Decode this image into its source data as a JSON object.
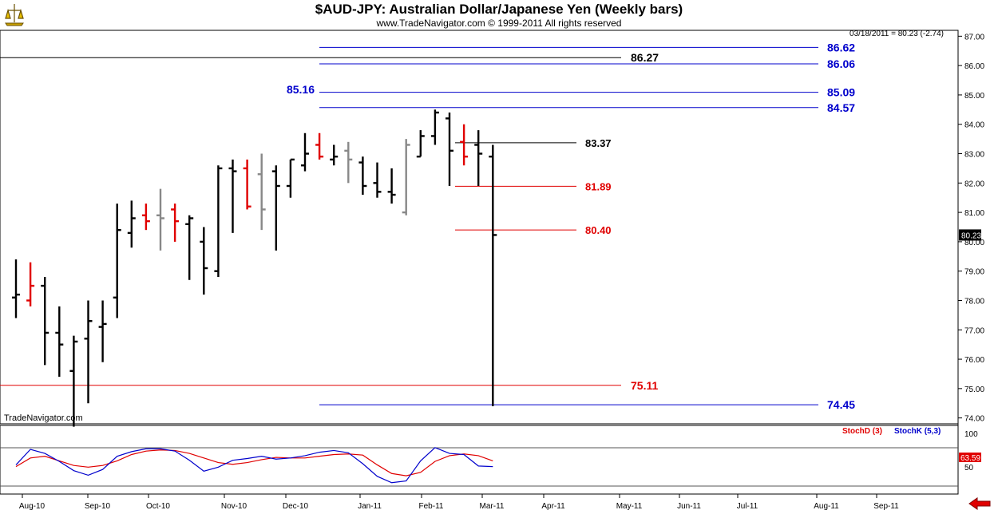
{
  "header": {
    "title": "$AUD-JPY:  Australian Dollar/Japanese Yen  (Weekly bars)",
    "subtitle": "www.TradeNavigator.com © 1999-2011 All rights reserved"
  },
  "colors": {
    "up_bar": "#000000",
    "down_bar": "#e00000",
    "inside_bar": "#888888",
    "blue_level": "#0000cc",
    "black_level": "#000000",
    "red_level": "#e00000",
    "stochD": "#e00000",
    "stochK": "#0000cc"
  },
  "chart_data": [
    {
      "type": "ohlc",
      "title": "$AUD-JPY:  Australian Dollar/Japanese Yen  (Weekly bars)",
      "last_quote": "03/18/2011 = 80.23 (-2.74)",
      "last_price_label": "80.23",
      "watermark": "TradeNavigator.com",
      "y_axis": {
        "min": 73.8,
        "max": 87.2,
        "ticks": [
          "74.00",
          "75.00",
          "76.00",
          "77.00",
          "78.00",
          "79.00",
          "80.00",
          "81.00",
          "82.00",
          "83.00",
          "84.00",
          "85.00",
          "86.00",
          "87.00"
        ],
        "position": "right"
      },
      "x_axis": {
        "labels": [
          "Aug-10",
          "Sep-10",
          "Oct-10",
          "Nov-10",
          "Dec-10",
          "Jan-11",
          "Feb-11",
          "Mar-11",
          "Apr-11",
          "May-11",
          "Jun-11",
          "Jul-11",
          "Aug-11",
          "Sep-11"
        ]
      },
      "bars": [
        {
          "o": 78.1,
          "h": 79.4,
          "l": 77.4,
          "c": 78.2,
          "color": "black"
        },
        {
          "o": 78.0,
          "h": 79.3,
          "l": 77.8,
          "c": 78.5,
          "color": "red"
        },
        {
          "o": 78.5,
          "h": 78.8,
          "l": 75.8,
          "c": 76.9,
          "color": "black"
        },
        {
          "o": 76.9,
          "h": 77.8,
          "l": 75.4,
          "c": 76.5,
          "color": "black"
        },
        {
          "o": 75.6,
          "h": 76.8,
          "l": 73.7,
          "c": 76.6,
          "color": "black"
        },
        {
          "o": 76.7,
          "h": 78.0,
          "l": 74.5,
          "c": 77.3,
          "color": "black"
        },
        {
          "o": 77.1,
          "h": 78.0,
          "l": 75.9,
          "c": 77.2,
          "color": "black"
        },
        {
          "o": 78.1,
          "h": 81.3,
          "l": 77.4,
          "c": 80.4,
          "color": "black"
        },
        {
          "o": 80.3,
          "h": 81.4,
          "l": 79.8,
          "c": 80.8,
          "color": "black"
        },
        {
          "o": 80.9,
          "h": 81.3,
          "l": 80.4,
          "c": 80.7,
          "color": "red"
        },
        {
          "o": 80.9,
          "h": 81.8,
          "l": 79.7,
          "c": 80.8,
          "color": "gray"
        },
        {
          "o": 81.1,
          "h": 81.3,
          "l": 80.0,
          "c": 80.7,
          "color": "red"
        },
        {
          "o": 80.6,
          "h": 80.9,
          "l": 78.7,
          "c": 80.8,
          "color": "black"
        },
        {
          "o": 80.0,
          "h": 80.5,
          "l": 78.2,
          "c": 79.1,
          "color": "black"
        },
        {
          "o": 79.0,
          "h": 82.6,
          "l": 78.8,
          "c": 82.5,
          "color": "black"
        },
        {
          "o": 82.5,
          "h": 82.8,
          "l": 80.3,
          "c": 82.4,
          "color": "black"
        },
        {
          "o": 82.5,
          "h": 82.8,
          "l": 81.1,
          "c": 81.2,
          "color": "red"
        },
        {
          "o": 82.3,
          "h": 83.0,
          "l": 80.4,
          "c": 81.1,
          "color": "gray"
        },
        {
          "o": 82.4,
          "h": 82.6,
          "l": 79.7,
          "c": 81.9,
          "color": "black"
        },
        {
          "o": 81.9,
          "h": 82.8,
          "l": 81.5,
          "c": 82.8,
          "color": "black"
        },
        {
          "o": 82.6,
          "h": 83.7,
          "l": 82.4,
          "c": 83.0,
          "color": "black"
        },
        {
          "o": 83.3,
          "h": 83.7,
          "l": 82.8,
          "c": 82.9,
          "color": "red"
        },
        {
          "o": 82.8,
          "h": 83.3,
          "l": 82.6,
          "c": 82.9,
          "color": "black"
        },
        {
          "o": 83.1,
          "h": 83.4,
          "l": 82.0,
          "c": 82.8,
          "color": "gray"
        },
        {
          "o": 82.7,
          "h": 82.9,
          "l": 81.6,
          "c": 81.9,
          "color": "black"
        },
        {
          "o": 82.0,
          "h": 82.7,
          "l": 81.5,
          "c": 81.7,
          "color": "black"
        },
        {
          "o": 81.7,
          "h": 82.5,
          "l": 81.3,
          "c": 81.6,
          "color": "black"
        },
        {
          "o": 81.0,
          "h": 83.5,
          "l": 80.9,
          "c": 83.3,
          "color": "gray"
        },
        {
          "o": 82.9,
          "h": 83.8,
          "l": 82.9,
          "c": 83.6,
          "color": "black"
        },
        {
          "o": 83.6,
          "h": 84.5,
          "l": 83.3,
          "c": 84.4,
          "color": "black"
        },
        {
          "o": 84.2,
          "h": 84.4,
          "l": 81.9,
          "c": 83.1,
          "color": "black"
        },
        {
          "o": 83.4,
          "h": 84.0,
          "l": 82.6,
          "c": 82.9,
          "color": "red"
        },
        {
          "o": 83.3,
          "h": 83.8,
          "l": 81.9,
          "c": 83.0,
          "color": "black"
        },
        {
          "o": 82.9,
          "h": 83.3,
          "l": 74.4,
          "c": 80.23,
          "color": "black"
        }
      ],
      "levels": [
        {
          "value": 86.62,
          "label": "86.62",
          "color": "blue"
        },
        {
          "value": 86.27,
          "label": "86.27",
          "color": "black"
        },
        {
          "value": 86.06,
          "label": "86.06",
          "color": "blue"
        },
        {
          "value": 85.16,
          "label": "85.16",
          "color": "blue"
        },
        {
          "value": 85.09,
          "label": "85.09",
          "color": "blue"
        },
        {
          "value": 84.57,
          "label": "84.57",
          "color": "blue"
        },
        {
          "value": 83.37,
          "label": "83.37",
          "color": "black"
        },
        {
          "value": 81.89,
          "label": "81.89",
          "color": "red"
        },
        {
          "value": 80.4,
          "label": "80.40",
          "color": "red"
        },
        {
          "value": 75.11,
          "label": "75.11",
          "color": "red"
        },
        {
          "value": 74.45,
          "label": "74.45",
          "color": "blue"
        }
      ]
    },
    {
      "type": "line",
      "legend": [
        "StochD (3)",
        "StochK (5,3)"
      ],
      "legend_placement": "top-right",
      "y_ticks": [
        "100",
        "50"
      ],
      "y_range": [
        0,
        100
      ],
      "current_value_label": "63.59",
      "series": [
        {
          "name": "StochD (3)",
          "color": "red",
          "values": [
            45,
            60,
            63,
            55,
            47,
            44,
            47,
            55,
            66,
            72,
            74,
            73,
            68,
            60,
            52,
            49,
            52,
            57,
            61,
            60,
            60,
            63,
            66,
            67,
            65,
            48,
            33,
            29,
            35,
            54,
            64,
            67,
            64,
            55
          ]
        },
        {
          "name": "StochK (5,3)",
          "color": "blue",
          "values": [
            48,
            75,
            68,
            54,
            38,
            30,
            40,
            63,
            71,
            76,
            76,
            72,
            56,
            37,
            44,
            56,
            59,
            63,
            58,
            60,
            64,
            70,
            73,
            69,
            50,
            28,
            17,
            20,
            55,
            78,
            68,
            66,
            46,
            45
          ]
        }
      ]
    }
  ]
}
